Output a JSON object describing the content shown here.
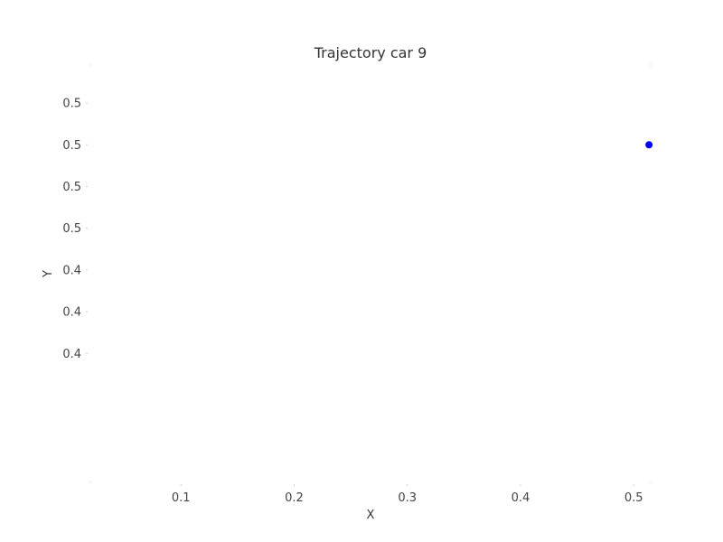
{
  "chart_data": {
    "type": "scatter",
    "title": "Trajectory car 9",
    "xlabel": "X",
    "ylabel": "Y",
    "xlim": [
      0.02,
      0.515
    ],
    "ylim": [
      0.3908,
      0.5028
    ],
    "x_ticks": [
      {
        "value": 0.1,
        "label": "0.1"
      },
      {
        "value": 0.2,
        "label": "0.2"
      },
      {
        "value": 0.3,
        "label": "0.3"
      },
      {
        "value": 0.4,
        "label": "0.4"
      },
      {
        "value": 0.5,
        "label": "0.5"
      }
    ],
    "y_ticks": [
      {
        "value": 0.4926,
        "label": "0.5"
      },
      {
        "value": 0.4814,
        "label": "0.5"
      },
      {
        "value": 0.4702,
        "label": "0.5"
      },
      {
        "value": 0.459,
        "label": "0.5"
      },
      {
        "value": 0.4478,
        "label": "0.4"
      },
      {
        "value": 0.4366,
        "label": "0.4"
      },
      {
        "value": 0.4254,
        "label": "0.4"
      }
    ],
    "grid": false,
    "series": [
      {
        "color": "#0000ff",
        "points": [
          {
            "x": 0.5135,
            "y": 0.4814
          }
        ]
      }
    ]
  }
}
